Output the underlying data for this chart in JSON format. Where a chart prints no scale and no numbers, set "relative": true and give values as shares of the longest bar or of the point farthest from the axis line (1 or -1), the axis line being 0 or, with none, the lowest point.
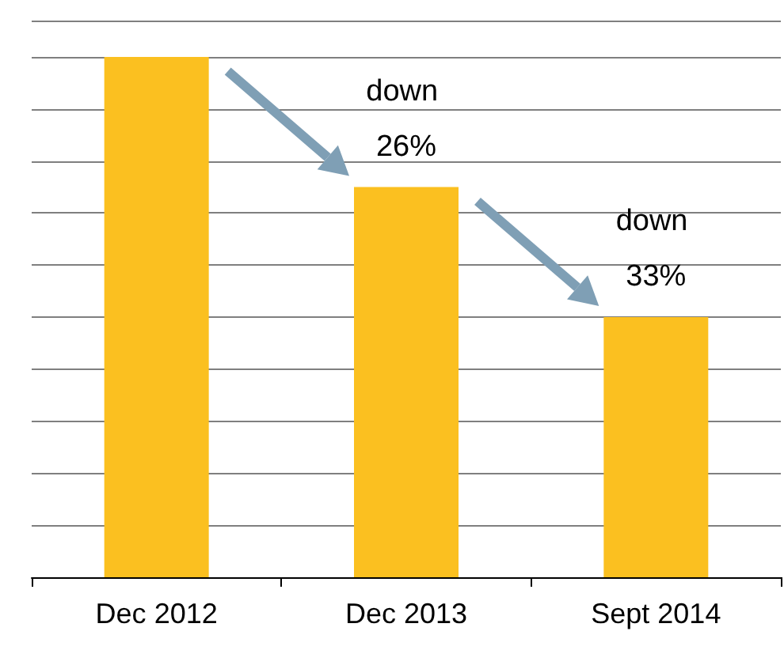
{
  "chart_data": {
    "type": "bar",
    "relative": true,
    "categories": [
      "Dec 2012",
      "Dec 2013",
      "Sept 2014"
    ],
    "values": [
      1,
      0.75,
      0.5
    ],
    "color": "#fbc020",
    "grid": "y",
    "annotations": [
      "down 26%",
      "down 33%"
    ]
  }
}
